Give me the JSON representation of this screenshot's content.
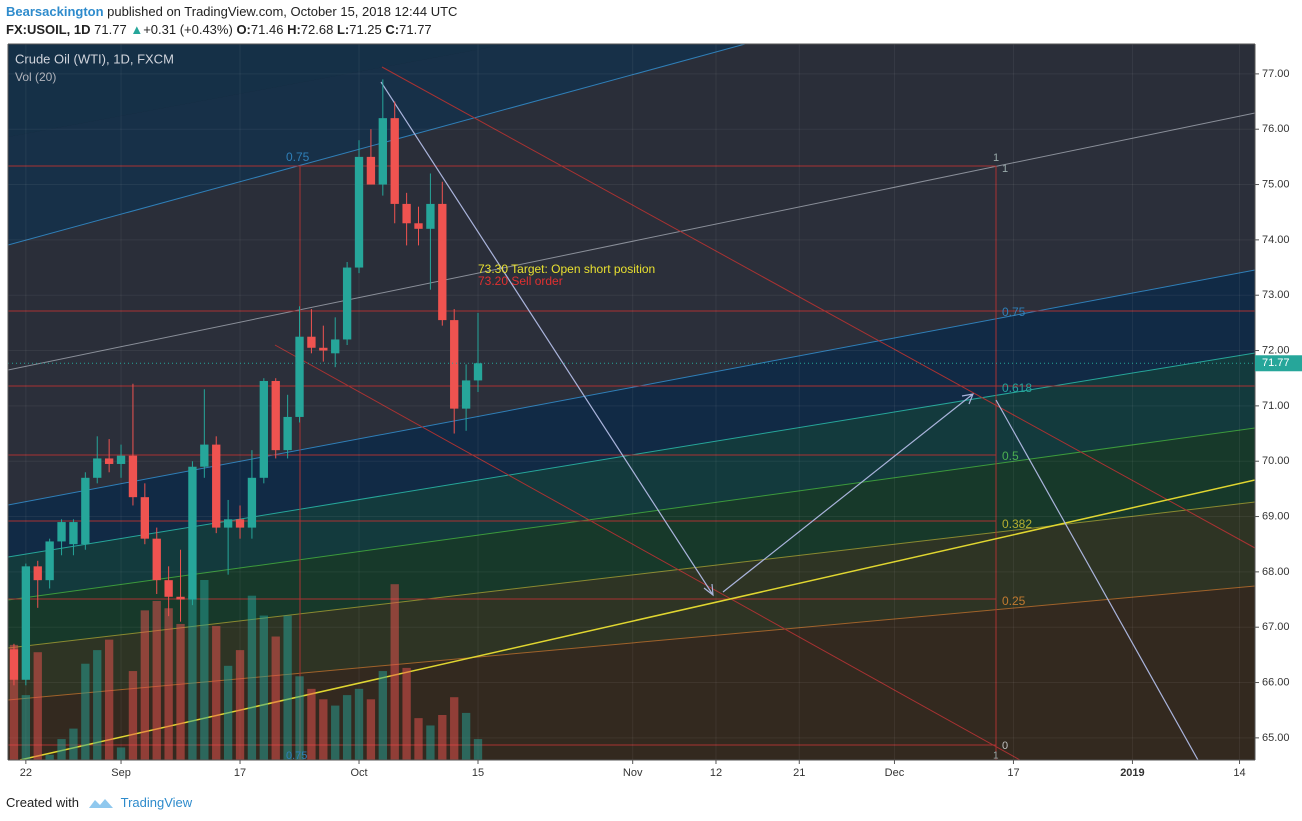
{
  "header": {
    "author": "Bearsackington",
    "published": "published on TradingView.com, October 15, 2018 12:44 UTC",
    "symbol": "FX:USOIL, 1D",
    "last": "71.77",
    "arrow": "▲",
    "change": "+0.31 (+0.43%)",
    "o_label": "O:",
    "o": "71.46",
    "h_label": "H:",
    "h": "72.68",
    "l_label": "L:",
    "l": "71.25",
    "c_label": "C:",
    "c": "71.77"
  },
  "footer": {
    "created": "Created with",
    "brand": "TradingView"
  },
  "chart_data": {
    "type": "candlestick",
    "title": "Crude Oil (WTI), 1D, FXCM",
    "volume_label": "Vol (20)",
    "x": [
      0,
      1,
      2,
      3,
      4,
      5,
      6,
      7,
      8,
      9,
      10,
      11,
      12,
      13,
      14,
      15,
      16,
      17,
      18,
      19,
      20,
      21,
      22,
      23,
      24,
      25,
      26,
      27,
      28,
      29,
      30,
      31,
      32,
      33,
      34,
      35,
      36,
      37,
      38,
      39
    ],
    "open": [
      66.6,
      66.05,
      68.1,
      67.85,
      68.55,
      68.5,
      68.5,
      69.7,
      70.05,
      69.95,
      70.1,
      69.35,
      68.6,
      67.85,
      67.55,
      67.5,
      69.9,
      70.3,
      68.8,
      68.95,
      68.8,
      69.7,
      71.45,
      70.2,
      70.8,
      72.25,
      72.05,
      71.95,
      72.2,
      73.5,
      75.5,
      75.0,
      76.2,
      74.65,
      74.3,
      74.2,
      74.65,
      72.55,
      70.95,
      71.46
    ],
    "high": [
      66.7,
      68.15,
      68.2,
      68.6,
      68.95,
      68.95,
      69.8,
      70.45,
      70.4,
      70.3,
      71.4,
      69.6,
      68.8,
      68.1,
      68.4,
      70.0,
      71.3,
      70.45,
      69.3,
      69.2,
      70.2,
      71.5,
      71.5,
      71.2,
      72.8,
      72.75,
      72.45,
      72.6,
      73.6,
      75.8,
      76.0,
      76.9,
      76.5,
      74.85,
      74.6,
      75.2,
      75.05,
      72.75,
      71.75,
      72.68
    ],
    "low": [
      65.95,
      65.95,
      67.35,
      67.7,
      68.3,
      68.3,
      68.4,
      69.6,
      69.8,
      69.7,
      69.2,
      68.5,
      67.6,
      67.2,
      67.1,
      67.4,
      69.7,
      68.7,
      67.95,
      68.6,
      68.6,
      69.6,
      70.05,
      70.05,
      70.7,
      71.95,
      71.8,
      71.7,
      72.1,
      73.4,
      75.0,
      74.8,
      74.3,
      73.9,
      73.9,
      73.1,
      72.45,
      70.5,
      70.55,
      71.25
    ],
    "close": [
      66.05,
      68.1,
      67.85,
      68.55,
      68.9,
      68.9,
      69.7,
      70.05,
      69.95,
      70.1,
      69.35,
      68.6,
      67.85,
      67.55,
      67.5,
      69.9,
      70.3,
      68.8,
      68.95,
      68.8,
      69.7,
      71.45,
      70.2,
      70.8,
      72.25,
      72.05,
      72.0,
      72.2,
      73.5,
      75.5,
      75.0,
      76.2,
      74.65,
      74.3,
      74.2,
      74.65,
      72.55,
      70.95,
      71.46,
      71.77
    ],
    "volume": [
      110,
      62,
      103,
      5,
      20,
      30,
      92,
      105,
      115,
      12,
      85,
      143,
      152,
      145,
      130,
      157,
      172,
      128,
      90,
      105,
      157,
      138,
      118,
      138,
      80,
      68,
      58,
      52,
      62,
      68,
      58,
      85,
      168,
      88,
      40,
      33,
      43,
      60,
      45,
      20
    ],
    "up_color": "#26a69a",
    "down_color": "#ef5350",
    "xlim": [
      -0.5,
      104.3
    ],
    "ylim": [
      64.6,
      77.54
    ],
    "xticks": [
      {
        "value": 1,
        "label": "22"
      },
      {
        "value": 9,
        "label": "Sep"
      },
      {
        "value": 19,
        "label": "17"
      },
      {
        "value": 29,
        "label": "Oct"
      },
      {
        "value": 39,
        "label": "15"
      },
      {
        "value": 52,
        "label": "Nov"
      },
      {
        "value": 59,
        "label": "12"
      },
      {
        "value": 66,
        "label": "21"
      },
      {
        "value": 74,
        "label": "Dec"
      },
      {
        "value": 84,
        "label": "17"
      },
      {
        "value": 94,
        "label": "2019"
      },
      {
        "value": 103,
        "label": "14"
      }
    ],
    "yticks": [
      {
        "value": 65,
        "label": "65.00"
      },
      {
        "value": 66,
        "label": "66.00"
      },
      {
        "value": 67,
        "label": "67.00"
      },
      {
        "value": 68,
        "label": "68.00"
      },
      {
        "value": 69,
        "label": "69.00"
      },
      {
        "value": 70,
        "label": "70.00"
      },
      {
        "value": 71,
        "label": "71.00"
      },
      {
        "value": 72,
        "label": "72.00"
      },
      {
        "value": 73,
        "label": "73.00"
      },
      {
        "value": 74,
        "label": "74.00"
      },
      {
        "value": 75,
        "label": "75.00"
      },
      {
        "value": 76,
        "label": "76.00"
      },
      {
        "value": 77,
        "label": "77.00"
      }
    ],
    "grid": true,
    "price_tag": {
      "value": 71.77,
      "label": "71.77"
    },
    "annotations": {
      "target": "73.30 Target: Open short position",
      "sell": "73.20 Sell order",
      "fib_075_left": "0.75",
      "fib_1a": "1",
      "fib_1b": "1",
      "fib_075": "0.75",
      "fib_0618": "0.618",
      "fib_05": "0.5",
      "fib_0382": "0.382",
      "fib_025": "0.25",
      "fib_0": "0",
      "fib_075_bottom": "0.75",
      "fib_1_bottom": "1"
    }
  }
}
